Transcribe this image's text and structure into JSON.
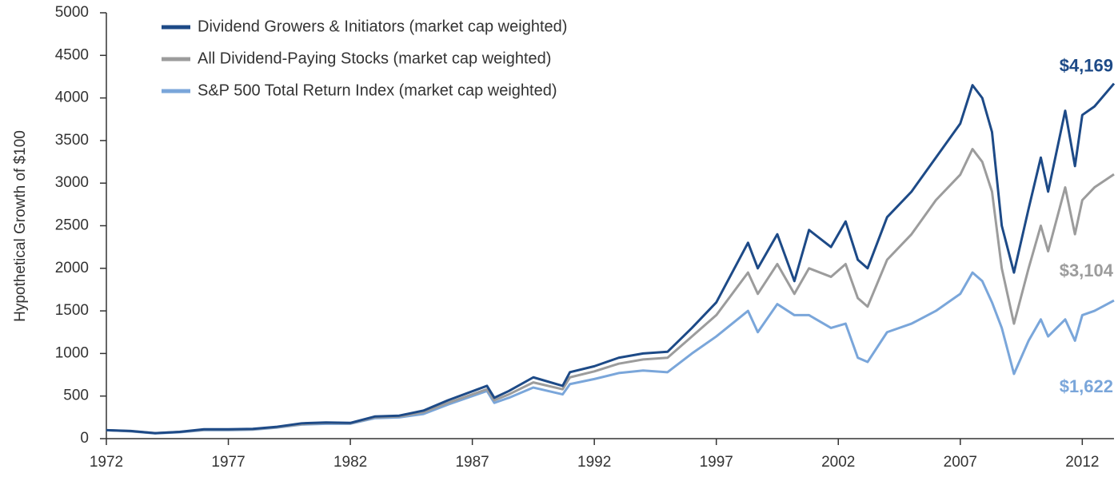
{
  "chart_data": {
    "type": "line",
    "y_label": "Hypothetical Growth of $100",
    "x": [
      1972,
      1973,
      1974,
      1975,
      1976,
      1977,
      1978,
      1979,
      1980,
      1981,
      1982,
      1983,
      1984,
      1985,
      1986,
      1987.6,
      1987.9,
      1988.5,
      1989.5,
      1990.7,
      1991,
      1992,
      1993,
      1994,
      1995,
      1996,
      1997,
      1998.3,
      1998.7,
      1999.5,
      2000.2,
      2000.8,
      2001.7,
      2002.3,
      2002.8,
      2003.2,
      2004,
      2005,
      2006,
      2007,
      2007.5,
      2007.9,
      2008.3,
      2008.7,
      2009.2,
      2009.8,
      2010.3,
      2010.6,
      2011.3,
      2011.7,
      2012,
      2012.5,
      2013.3
    ],
    "series": [
      {
        "name": "Dividend Growers & Initiators (market cap weighted)",
        "color": "#1d4a87",
        "end_label": "$4,169",
        "values": [
          100,
          90,
          65,
          80,
          110,
          110,
          115,
          140,
          180,
          190,
          185,
          260,
          270,
          330,
          450,
          620,
          480,
          560,
          720,
          620,
          780,
          850,
          950,
          1000,
          1020,
          1300,
          1600,
          2300,
          2000,
          2400,
          1850,
          2450,
          2250,
          2550,
          2100,
          2000,
          2600,
          2900,
          3300,
          3700,
          4150,
          4000,
          3600,
          2500,
          1950,
          2700,
          3300,
          2900,
          3850,
          3200,
          3800,
          3900,
          4169
        ]
      },
      {
        "name": "All Dividend-Paying Stocks (market cap weighted)",
        "color": "#9c9c9c",
        "end_label": "$3,104",
        "values": [
          100,
          88,
          65,
          78,
          105,
          105,
          110,
          135,
          170,
          185,
          180,
          250,
          260,
          310,
          420,
          580,
          450,
          520,
          660,
          580,
          720,
          790,
          880,
          930,
          950,
          1200,
          1450,
          1950,
          1700,
          2050,
          1700,
          2000,
          1900,
          2050,
          1650,
          1550,
          2100,
          2400,
          2800,
          3100,
          3400,
          3250,
          2900,
          2000,
          1350,
          2000,
          2500,
          2200,
          2950,
          2400,
          2800,
          2950,
          3104
        ]
      },
      {
        "name": "S&P 500 Total Return Index (market cap weighted)",
        "color": "#7aa6da",
        "end_label": "$1,622",
        "values": [
          100,
          85,
          62,
          75,
          100,
          100,
          105,
          130,
          165,
          175,
          175,
          240,
          250,
          290,
          400,
          560,
          420,
          480,
          600,
          520,
          640,
          700,
          770,
          800,
          780,
          1000,
          1200,
          1500,
          1250,
          1580,
          1450,
          1450,
          1300,
          1350,
          950,
          900,
          1250,
          1350,
          1500,
          1700,
          1950,
          1850,
          1600,
          1300,
          760,
          1150,
          1400,
          1200,
          1400,
          1150,
          1450,
          1500,
          1622
        ]
      }
    ],
    "xlim": [
      1972,
      2013.3
    ],
    "xticks": [
      1972,
      1977,
      1982,
      1987,
      1992,
      1997,
      2002,
      2007,
      2012
    ],
    "ylim": [
      0,
      5000
    ],
    "yticks": [
      0,
      500,
      1000,
      1500,
      2000,
      2500,
      3000,
      3500,
      4000,
      4500,
      5000
    ],
    "legend": "upper left"
  }
}
